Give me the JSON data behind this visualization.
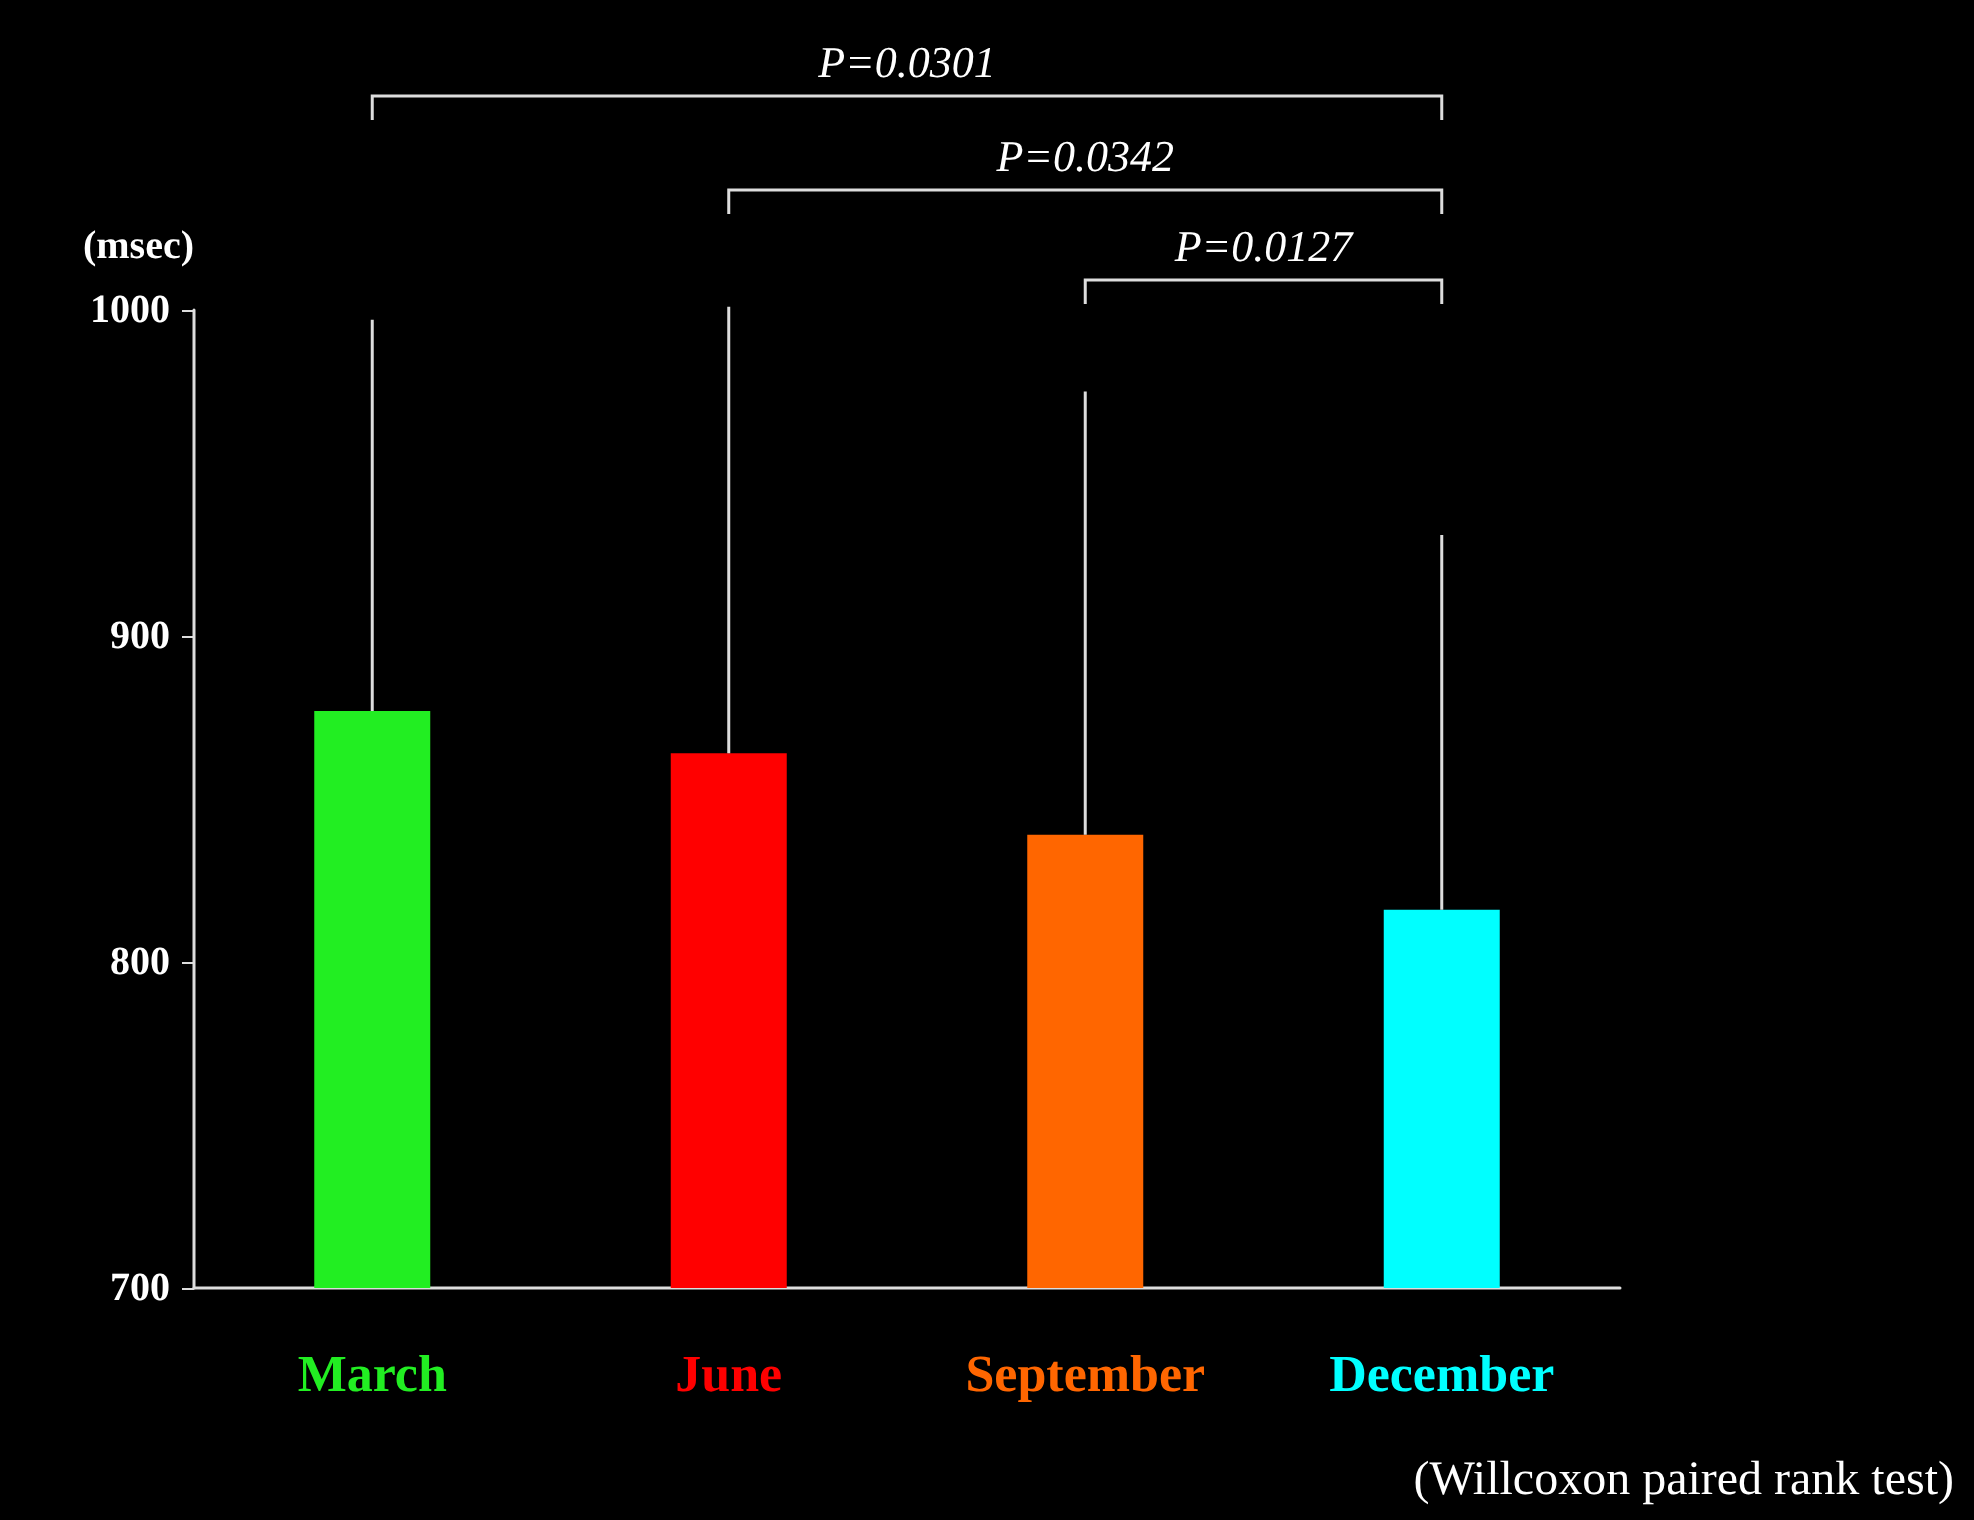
{
  "chart_data": {
    "type": "bar",
    "categories": [
      "March",
      "June",
      "September",
      "December"
    ],
    "values": [
      877,
      864,
      839,
      816
    ],
    "colors": [
      "#22ee22",
      "#ff0000",
      "#ff6600",
      "#00ffff"
    ],
    "errors": [
      [
        877,
        997
      ],
      [
        864,
        1001
      ],
      [
        839,
        975
      ],
      [
        816,
        931
      ]
    ],
    "ylabel": "(msec)",
    "ylim": [
      700,
      1000
    ],
    "yticks": [
      700,
      800,
      900,
      1000
    ],
    "grid": false,
    "annotations": [
      "P=0.0301",
      "P=0.0342",
      "P=0.0127",
      "(Willcoxon paired rank test)"
    ]
  }
}
